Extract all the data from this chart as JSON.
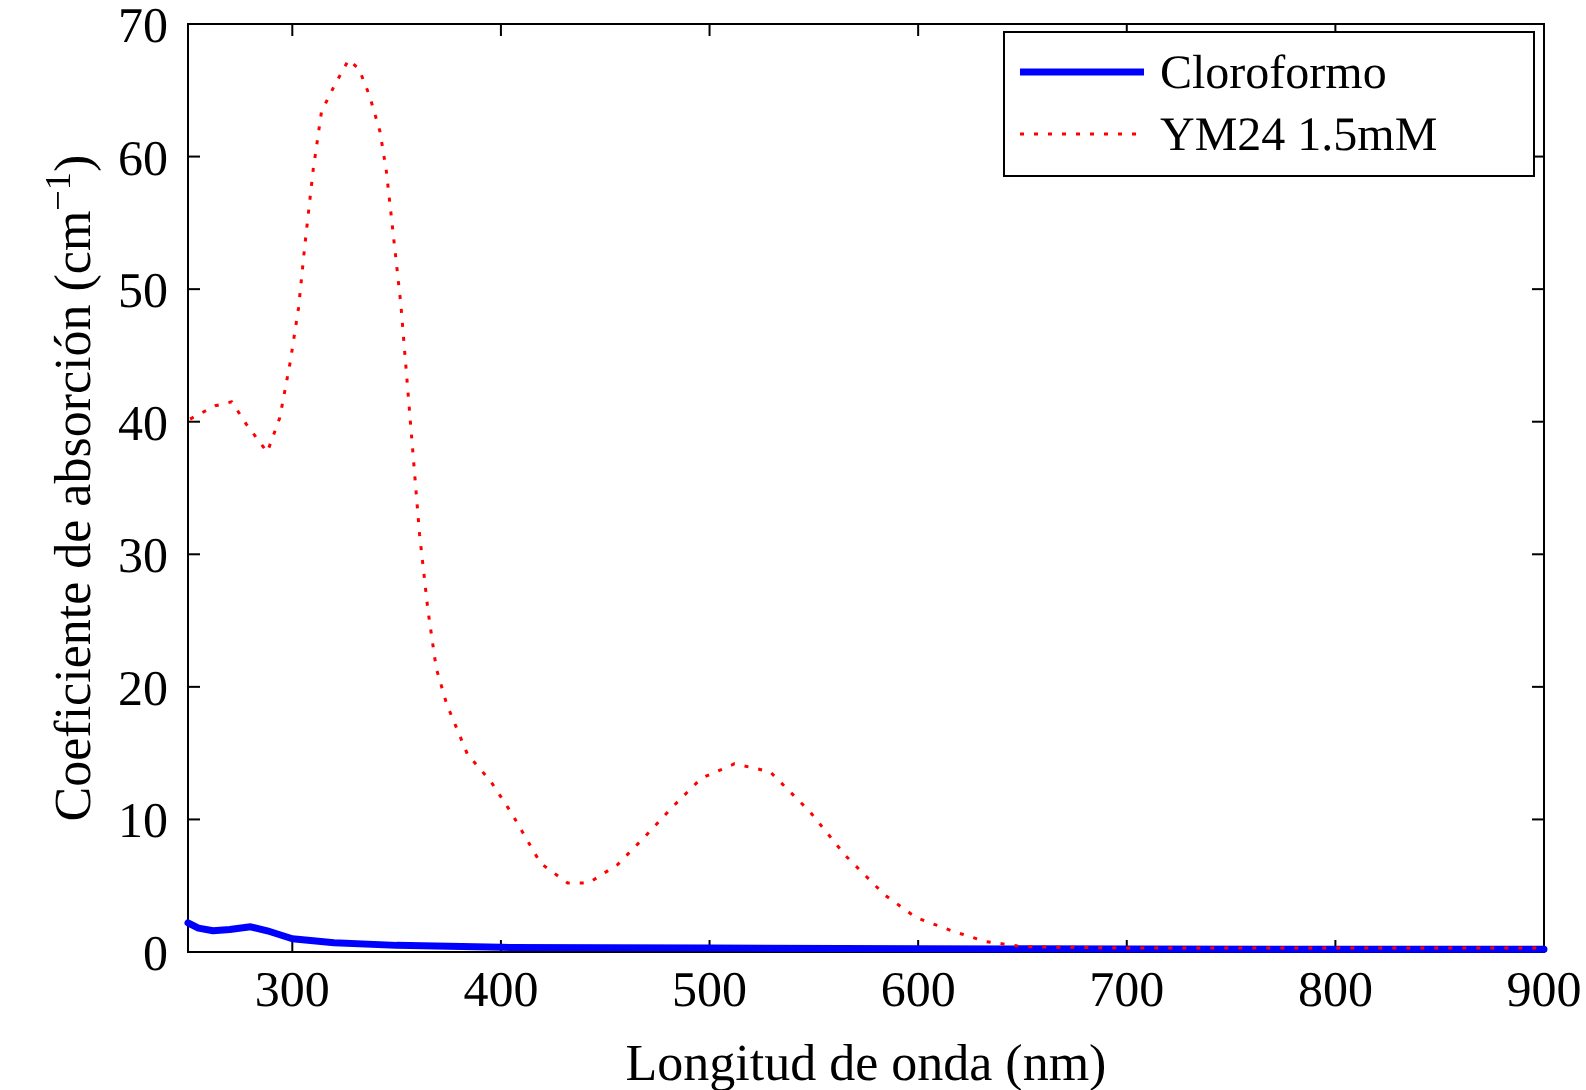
{
  "chart_data": {
    "type": "line",
    "xlabel": "Longitud de onda (nm)",
    "ylabel": "Coeficiente de absorción (cm$^{−1}$)",
    "xlim": [
      250,
      900
    ],
    "ylim": [
      0,
      70
    ],
    "xticks": [
      300,
      400,
      500,
      600,
      700,
      800,
      900
    ],
    "yticks": [
      0,
      10,
      20,
      30,
      40,
      50,
      60,
      70
    ],
    "grid": false,
    "legend": "top right",
    "series": [
      {
        "name": "Cloroformo",
        "color": "#0000ff",
        "line_style": "solid",
        "x": [
          250,
          255,
          262,
          270,
          280,
          288,
          300,
          320,
          350,
          400,
          500,
          600,
          700,
          800,
          900
        ],
        "values": [
          2.2,
          1.8,
          1.6,
          1.7,
          1.9,
          1.6,
          1.0,
          0.7,
          0.5,
          0.35,
          0.3,
          0.25,
          0.22,
          0.2,
          0.2
        ]
      },
      {
        "name": "YM24 1.5mM",
        "color": "#ff0000",
        "line_style": "dotted",
        "x": [
          251,
          263,
          271,
          278,
          288,
          294,
          299,
          303,
          306,
          310,
          314,
          320,
          327,
          332,
          337,
          342,
          345,
          348,
          352,
          355,
          358,
          361,
          365,
          369,
          374,
          384,
          395,
          405,
          419,
          432,
          442,
          456,
          469,
          482,
          496,
          512,
          529,
          548,
          565,
          584,
          599,
          616,
          632,
          650,
          700,
          800,
          900
        ],
        "values": [
          40.2,
          41.2,
          41.5,
          39.8,
          37.7,
          40.3,
          44.5,
          48.6,
          53.3,
          59,
          63.4,
          65.3,
          67.3,
          66.6,
          64.6,
          61.9,
          59,
          54.7,
          48.9,
          43.1,
          37.3,
          31.5,
          25.8,
          21.4,
          18.7,
          14.9,
          12.9,
          10.5,
          6.7,
          5.2,
          5.2,
          6.6,
          8.7,
          10.9,
          13.1,
          14.2,
          13.6,
          10.6,
          7.3,
          4.3,
          2.6,
          1.6,
          0.8,
          0.4,
          0.3,
          0.3,
          0.3
        ]
      }
    ]
  }
}
